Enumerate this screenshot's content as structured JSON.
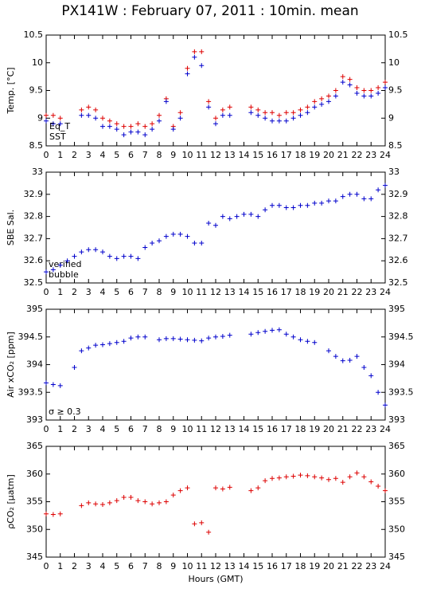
{
  "chart_data": [
    {
      "type": "scatter",
      "title": "PX141W : February 07, 2011 : 10min. mean",
      "ylabel": "Temp. [°C]",
      "x": [
        0,
        0.5,
        1,
        1.5,
        2,
        2.5,
        3,
        3.5,
        4,
        4.5,
        5,
        5.5,
        6,
        6.5,
        7,
        7.5,
        8,
        8.5,
        9,
        9.5,
        10,
        10.5,
        11,
        11.5,
        12,
        12.5,
        13,
        13.5,
        14,
        14.5,
        15,
        15.5,
        16,
        16.5,
        17,
        17.5,
        18,
        18.5,
        19,
        19.5,
        20,
        20.5,
        21,
        21.5,
        22,
        22.5,
        23,
        23.5,
        24
      ],
      "series": [
        {
          "name": "Eq_T",
          "color": "#dd0000",
          "values": [
            9.05,
            9.05,
            9.0,
            null,
            null,
            9.15,
            9.2,
            9.15,
            9.0,
            8.95,
            8.9,
            8.85,
            8.85,
            8.9,
            8.85,
            8.9,
            9.05,
            9.35,
            8.85,
            9.1,
            9.9,
            10.2,
            10.2,
            9.3,
            9.0,
            9.15,
            9.2,
            null,
            null,
            9.2,
            9.15,
            9.1,
            9.1,
            9.05,
            9.1,
            9.1,
            9.15,
            9.2,
            9.3,
            9.35,
            9.4,
            9.5,
            9.75,
            9.7,
            9.55,
            9.5,
            9.5,
            9.55,
            9.65
          ]
        },
        {
          "name": "SST",
          "color": "#0000cc",
          "values": [
            8.95,
            8.9,
            8.9,
            null,
            null,
            9.05,
            9.05,
            9.0,
            8.85,
            8.85,
            8.8,
            8.7,
            8.75,
            8.75,
            8.7,
            8.8,
            8.95,
            9.3,
            8.8,
            9.0,
            9.8,
            10.1,
            9.95,
            9.2,
            8.9,
            9.05,
            9.05,
            null,
            null,
            9.1,
            9.05,
            9.0,
            8.95,
            8.95,
            8.95,
            9.0,
            9.05,
            9.1,
            9.2,
            9.25,
            9.3,
            9.4,
            9.65,
            9.6,
            9.45,
            9.4,
            9.4,
            9.45,
            9.55
          ]
        }
      ],
      "xlim": [
        0,
        24
      ],
      "xticks": [
        0,
        1,
        2,
        3,
        4,
        5,
        6,
        7,
        8,
        9,
        10,
        11,
        12,
        13,
        14,
        15,
        16,
        17,
        18,
        19,
        20,
        21,
        22,
        23,
        24
      ],
      "ylim": [
        8.5,
        10.5
      ],
      "yticks": [
        8.5,
        9,
        9.5,
        10,
        10.5
      ]
    },
    {
      "type": "scatter",
      "ylabel": "SBE Sal.",
      "color": "#0000cc",
      "x": [
        0,
        0.5,
        1,
        1.5,
        2,
        2.5,
        3,
        3.5,
        4,
        4.5,
        5,
        5.5,
        6,
        6.5,
        7,
        7.5,
        8,
        8.5,
        9,
        9.5,
        10,
        10.5,
        11,
        11.5,
        12,
        12.5,
        13,
        13.5,
        14,
        14.5,
        15,
        15.5,
        16,
        16.5,
        17,
        17.5,
        18,
        18.5,
        19,
        19.5,
        20,
        20.5,
        21,
        21.5,
        22,
        22.5,
        23,
        23.5,
        24
      ],
      "values": [
        32.55,
        32.56,
        32.58,
        32.6,
        32.62,
        32.64,
        32.65,
        32.65,
        32.64,
        32.62,
        32.61,
        32.62,
        32.62,
        32.61,
        32.66,
        32.68,
        32.69,
        32.71,
        32.72,
        32.72,
        32.71,
        32.68,
        32.68,
        32.77,
        32.76,
        32.8,
        32.79,
        32.8,
        32.81,
        32.81,
        32.8,
        32.83,
        32.85,
        32.85,
        32.84,
        32.84,
        32.85,
        32.85,
        32.86,
        32.86,
        32.87,
        32.87,
        32.89,
        32.9,
        32.9,
        32.88,
        32.88,
        32.92,
        32.94
      ],
      "annotations": [
        {
          "text": "verified",
          "color": "#0000cc"
        },
        {
          "text": "bubble",
          "color": "#cc00cc"
        }
      ],
      "xlim": [
        0,
        24
      ],
      "xticks": [
        0,
        1,
        2,
        3,
        4,
        5,
        6,
        7,
        8,
        9,
        10,
        11,
        12,
        13,
        14,
        15,
        16,
        17,
        18,
        19,
        20,
        21,
        22,
        23,
        24
      ],
      "ylim": [
        32.5,
        33
      ],
      "yticks": [
        32.5,
        32.6,
        32.7,
        32.8,
        32.9,
        33
      ]
    },
    {
      "type": "scatter",
      "ylabel": "Air xCO₂ [ppm]",
      "color": "#0000cc",
      "x": [
        0,
        0.5,
        1,
        1.5,
        2,
        2.5,
        3,
        3.5,
        4,
        4.5,
        5,
        5.5,
        6,
        6.5,
        7,
        7.5,
        8,
        8.5,
        9,
        9.5,
        10,
        10.5,
        11,
        11.5,
        12,
        12.5,
        13,
        13.5,
        14,
        14.5,
        15,
        15.5,
        16,
        16.5,
        17,
        17.5,
        18,
        18.5,
        19,
        19.5,
        20,
        20.5,
        21,
        21.5,
        22,
        22.5,
        23,
        23.5,
        24
      ],
      "values": [
        393.67,
        393.64,
        393.62,
        null,
        393.95,
        394.25,
        394.3,
        394.35,
        394.36,
        394.38,
        394.4,
        394.42,
        394.48,
        394.5,
        394.5,
        null,
        394.45,
        394.47,
        394.47,
        394.46,
        394.45,
        394.44,
        394.43,
        394.48,
        394.5,
        394.51,
        394.53,
        null,
        null,
        394.55,
        394.58,
        394.6,
        394.62,
        394.63,
        394.55,
        394.5,
        394.45,
        394.42,
        394.4,
        null,
        394.25,
        394.15,
        394.07,
        394.08,
        394.15,
        393.95,
        393.8,
        393.5,
        393.27
      ],
      "annotations": [
        {
          "text": "σ ≥ 0.3",
          "color": "#cc00cc"
        }
      ],
      "xlim": [
        0,
        24
      ],
      "xticks": [
        0,
        1,
        2,
        3,
        4,
        5,
        6,
        7,
        8,
        9,
        10,
        11,
        12,
        13,
        14,
        15,
        16,
        17,
        18,
        19,
        20,
        21,
        22,
        23,
        24
      ],
      "ylim": [
        393,
        395
      ],
      "yticks": [
        393,
        393.5,
        394,
        394.5,
        395
      ]
    },
    {
      "type": "scatter",
      "ylabel": "ρCO₂ [μatm]",
      "xlabel": "Hours (GMT)",
      "color": "#dd0000",
      "x": [
        0,
        0.5,
        1,
        1.5,
        2,
        2.5,
        3,
        3.5,
        4,
        4.5,
        5,
        5.5,
        6,
        6.5,
        7,
        7.5,
        8,
        8.5,
        9,
        9.5,
        10,
        10.5,
        11,
        11.5,
        12,
        12.5,
        13,
        13.5,
        14,
        14.5,
        15,
        15.5,
        16,
        16.5,
        17,
        17.5,
        18,
        18.5,
        19,
        19.5,
        20,
        20.5,
        21,
        21.5,
        22,
        22.5,
        23,
        23.5,
        24
      ],
      "values": [
        352.8,
        352.7,
        352.8,
        null,
        null,
        354.3,
        354.8,
        354.6,
        354.5,
        354.8,
        355.2,
        355.8,
        355.8,
        355.2,
        355,
        354.6,
        354.8,
        355,
        356.2,
        357,
        357.5,
        351,
        351.2,
        349.5,
        357.5,
        357.3,
        357.6,
        null,
        null,
        357,
        357.5,
        358.8,
        359.2,
        359.3,
        359.5,
        359.6,
        359.8,
        359.7,
        359.5,
        359.3,
        359,
        359.2,
        358.5,
        359.5,
        360.2,
        359.5,
        358.6,
        357.8,
        357
      ],
      "xlim": [
        0,
        24
      ],
      "xticks": [
        0,
        1,
        2,
        3,
        4,
        5,
        6,
        7,
        8,
        9,
        10,
        11,
        12,
        13,
        14,
        15,
        16,
        17,
        18,
        19,
        20,
        21,
        22,
        23,
        24
      ],
      "ylim": [
        345,
        365
      ],
      "yticks": [
        345,
        350,
        355,
        360,
        365
      ]
    }
  ]
}
